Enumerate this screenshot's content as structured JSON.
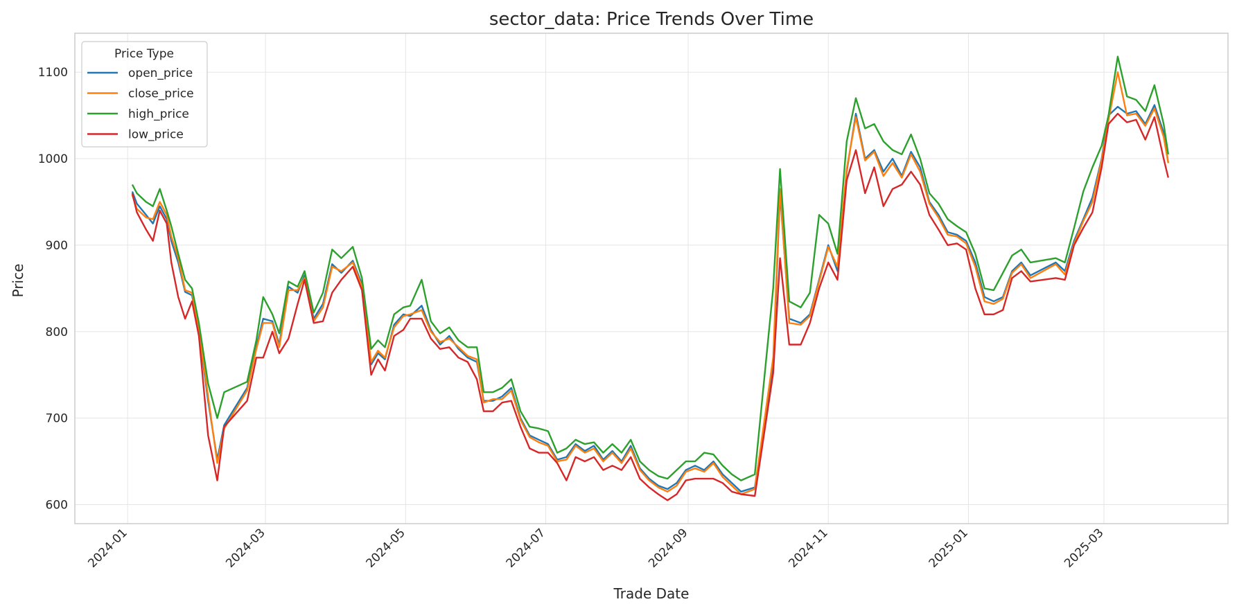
{
  "chart_data": {
    "type": "line",
    "title": "sector_data: Price Trends Over Time",
    "xlabel": "Trade Date",
    "ylabel": "Price",
    "ylim": [
      578,
      1145
    ],
    "xlim": [
      "2023-12-09",
      "2025-04-24"
    ],
    "grid": true,
    "legend": {
      "title": "Price Type",
      "placement": "top-left"
    },
    "x_ticks": [
      "2024-01",
      "2024-03",
      "2024-05",
      "2024-07",
      "2024-09",
      "2024-11",
      "2025-01",
      "2025-03"
    ],
    "y_ticks": [
      600,
      700,
      800,
      900,
      1000,
      1100
    ],
    "x": [
      "2024-01-03",
      "2024-01-05",
      "2024-01-09",
      "2024-01-12",
      "2024-01-15",
      "2024-01-18",
      "2024-01-20",
      "2024-01-23",
      "2024-01-26",
      "2024-01-29",
      "2024-02-01",
      "2024-02-05",
      "2024-02-09",
      "2024-02-12",
      "2024-02-22",
      "2024-02-26",
      "2024-02-29",
      "2024-03-04",
      "2024-03-07",
      "2024-03-11",
      "2024-03-15",
      "2024-03-18",
      "2024-03-22",
      "2024-03-26",
      "2024-03-30",
      "2024-04-03",
      "2024-04-08",
      "2024-04-12",
      "2024-04-16",
      "2024-04-19",
      "2024-04-22",
      "2024-04-26",
      "2024-04-30",
      "2024-05-03",
      "2024-05-08",
      "2024-05-12",
      "2024-05-16",
      "2024-05-20",
      "2024-05-24",
      "2024-05-28",
      "2024-06-01",
      "2024-06-04",
      "2024-06-08",
      "2024-06-12",
      "2024-06-16",
      "2024-06-20",
      "2024-06-24",
      "2024-06-28",
      "2024-07-02",
      "2024-07-06",
      "2024-07-10",
      "2024-07-14",
      "2024-07-18",
      "2024-07-22",
      "2024-07-26",
      "2024-07-30",
      "2024-08-03",
      "2024-08-07",
      "2024-08-11",
      "2024-08-15",
      "2024-08-19",
      "2024-08-23",
      "2024-08-27",
      "2024-08-31",
      "2024-09-04",
      "2024-09-08",
      "2024-09-12",
      "2024-09-16",
      "2024-09-20",
      "2024-09-24",
      "2024-09-30",
      "2024-10-08",
      "2024-10-11",
      "2024-10-15",
      "2024-10-20",
      "2024-10-24",
      "2024-10-28",
      "2024-11-01",
      "2024-11-05",
      "2024-11-09",
      "2024-11-13",
      "2024-11-17",
      "2024-11-21",
      "2024-11-25",
      "2024-11-29",
      "2024-12-03",
      "2024-12-07",
      "2024-12-11",
      "2024-12-15",
      "2024-12-19",
      "2024-12-23",
      "2024-12-27",
      "2024-12-31",
      "2025-01-04",
      "2025-01-08",
      "2025-01-12",
      "2025-01-16",
      "2025-01-20",
      "2025-01-24",
      "2025-01-28",
      "2025-02-08",
      "2025-02-12",
      "2025-02-16",
      "2025-02-20",
      "2025-02-24",
      "2025-02-28",
      "2025-03-03",
      "2025-03-07",
      "2025-03-11",
      "2025-03-15",
      "2025-03-19",
      "2025-03-23",
      "2025-03-27",
      "2025-03-29"
    ],
    "series": [
      {
        "name": "open_price",
        "color": "#1f77b4",
        "values": [
          962,
          948,
          935,
          925,
          945,
          930,
          905,
          880,
          846,
          842,
          800,
          720,
          652,
          692,
          735,
          782,
          815,
          812,
          785,
          852,
          845,
          865,
          815,
          832,
          878,
          868,
          882,
          855,
          762,
          775,
          768,
          808,
          820,
          818,
          830,
          802,
          785,
          795,
          780,
          770,
          765,
          720,
          720,
          725,
          735,
          700,
          680,
          675,
          670,
          652,
          655,
          670,
          662,
          668,
          652,
          662,
          650,
          668,
          642,
          630,
          622,
          618,
          625,
          640,
          645,
          640,
          650,
          635,
          625,
          615,
          620,
          760,
          960,
          815,
          810,
          820,
          860,
          900,
          870,
          985,
          1052,
          1000,
          1010,
          985,
          1000,
          980,
          1008,
          990,
          950,
          935,
          915,
          912,
          905,
          880,
          840,
          835,
          840,
          870,
          880,
          865,
          880,
          870,
          905,
          930,
          955,
          1000,
          1050,
          1060,
          1052,
          1055,
          1040,
          1062,
          1030,
          995
        ]
      },
      {
        "name": "close_price",
        "color": "#ff7f0e",
        "values": [
          958,
          942,
          932,
          930,
          950,
          935,
          910,
          885,
          848,
          845,
          802,
          725,
          648,
          688,
          732,
          780,
          810,
          810,
          782,
          848,
          848,
          862,
          812,
          828,
          875,
          870,
          880,
          852,
          765,
          778,
          770,
          805,
          818,
          820,
          825,
          800,
          788,
          792,
          782,
          772,
          768,
          718,
          722,
          722,
          732,
          698,
          678,
          672,
          668,
          650,
          652,
          668,
          660,
          665,
          650,
          660,
          648,
          665,
          640,
          628,
          620,
          615,
          622,
          638,
          642,
          638,
          648,
          632,
          622,
          612,
          618,
          770,
          965,
          810,
          808,
          818,
          858,
          898,
          875,
          988,
          1048,
          998,
          1008,
          980,
          995,
          978,
          1005,
          985,
          948,
          932,
          912,
          910,
          902,
          875,
          835,
          832,
          838,
          868,
          878,
          862,
          878,
          866,
          902,
          928,
          950,
          998,
          1045,
          1100,
          1050,
          1052,
          1038,
          1058,
          1025,
          995
        ]
      },
      {
        "name": "high_price",
        "color": "#2ca02c",
        "values": [
          970,
          960,
          950,
          945,
          965,
          940,
          922,
          890,
          860,
          850,
          810,
          740,
          700,
          730,
          742,
          790,
          840,
          820,
          798,
          858,
          852,
          870,
          822,
          845,
          895,
          885,
          898,
          862,
          780,
          790,
          782,
          820,
          828,
          830,
          860,
          812,
          798,
          805,
          790,
          782,
          782,
          730,
          730,
          735,
          745,
          708,
          690,
          688,
          685,
          660,
          665,
          675,
          670,
          672,
          660,
          670,
          660,
          675,
          650,
          640,
          633,
          630,
          640,
          650,
          650,
          660,
          658,
          645,
          635,
          628,
          635,
          850,
          988,
          835,
          828,
          845,
          935,
          925,
          890,
          1020,
          1070,
          1035,
          1040,
          1020,
          1010,
          1005,
          1028,
          1000,
          960,
          948,
          930,
          922,
          915,
          890,
          850,
          848,
          868,
          888,
          895,
          880,
          885,
          880,
          920,
          962,
          990,
          1015,
          1050,
          1118,
          1072,
          1068,
          1055,
          1085,
          1040,
          1005
        ]
      },
      {
        "name": "low_price",
        "color": "#d62728",
        "values": [
          960,
          938,
          918,
          905,
          940,
          925,
          880,
          840,
          815,
          835,
          795,
          680,
          628,
          690,
          720,
          770,
          770,
          800,
          775,
          792,
          832,
          860,
          810,
          812,
          845,
          860,
          875,
          848,
          750,
          768,
          755,
          795,
          802,
          815,
          815,
          792,
          780,
          782,
          770,
          765,
          745,
          708,
          708,
          718,
          720,
          690,
          665,
          660,
          660,
          648,
          628,
          655,
          650,
          655,
          640,
          645,
          640,
          655,
          630,
          620,
          612,
          605,
          612,
          628,
          630,
          630,
          630,
          625,
          615,
          612,
          610,
          752,
          885,
          785,
          785,
          810,
          850,
          880,
          860,
          975,
          1010,
          960,
          990,
          945,
          965,
          970,
          985,
          970,
          935,
          918,
          900,
          902,
          895,
          850,
          820,
          820,
          825,
          862,
          870,
          858,
          862,
          860,
          900,
          920,
          938,
          990,
          1040,
          1052,
          1042,
          1045,
          1022,
          1048,
          1000,
          978
        ]
      }
    ]
  }
}
